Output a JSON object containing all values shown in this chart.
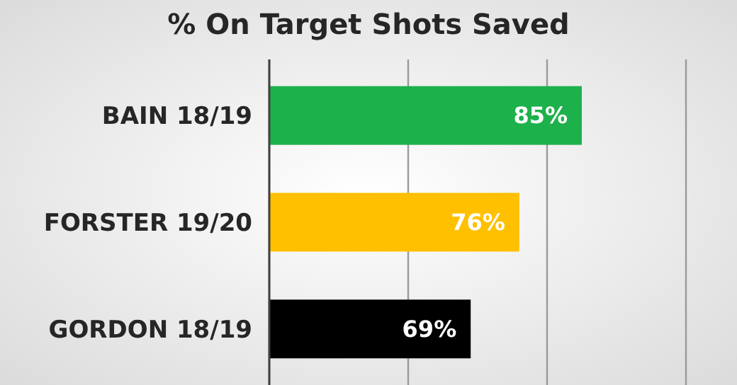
{
  "chart_data": {
    "type": "bar",
    "orientation": "horizontal",
    "title": "% On Target Shots Saved",
    "categories": [
      "BAIN 18/19",
      "FORSTER 19/20",
      "GORDON 18/19"
    ],
    "values": [
      85,
      76,
      69
    ],
    "colors": [
      "#1db14b",
      "#ffc000",
      "#000000"
    ],
    "value_labels": [
      "85%",
      "76%",
      "69%"
    ],
    "xlim": [
      40,
      100
    ],
    "xticks": [
      {
        "value": 40,
        "label": null
      },
      {
        "value": 60,
        "label": null
      },
      {
        "value": 80,
        "label": null
      },
      {
        "value": 100,
        "label": null
      }
    ],
    "grid": "x",
    "tick_labels": "y"
  }
}
